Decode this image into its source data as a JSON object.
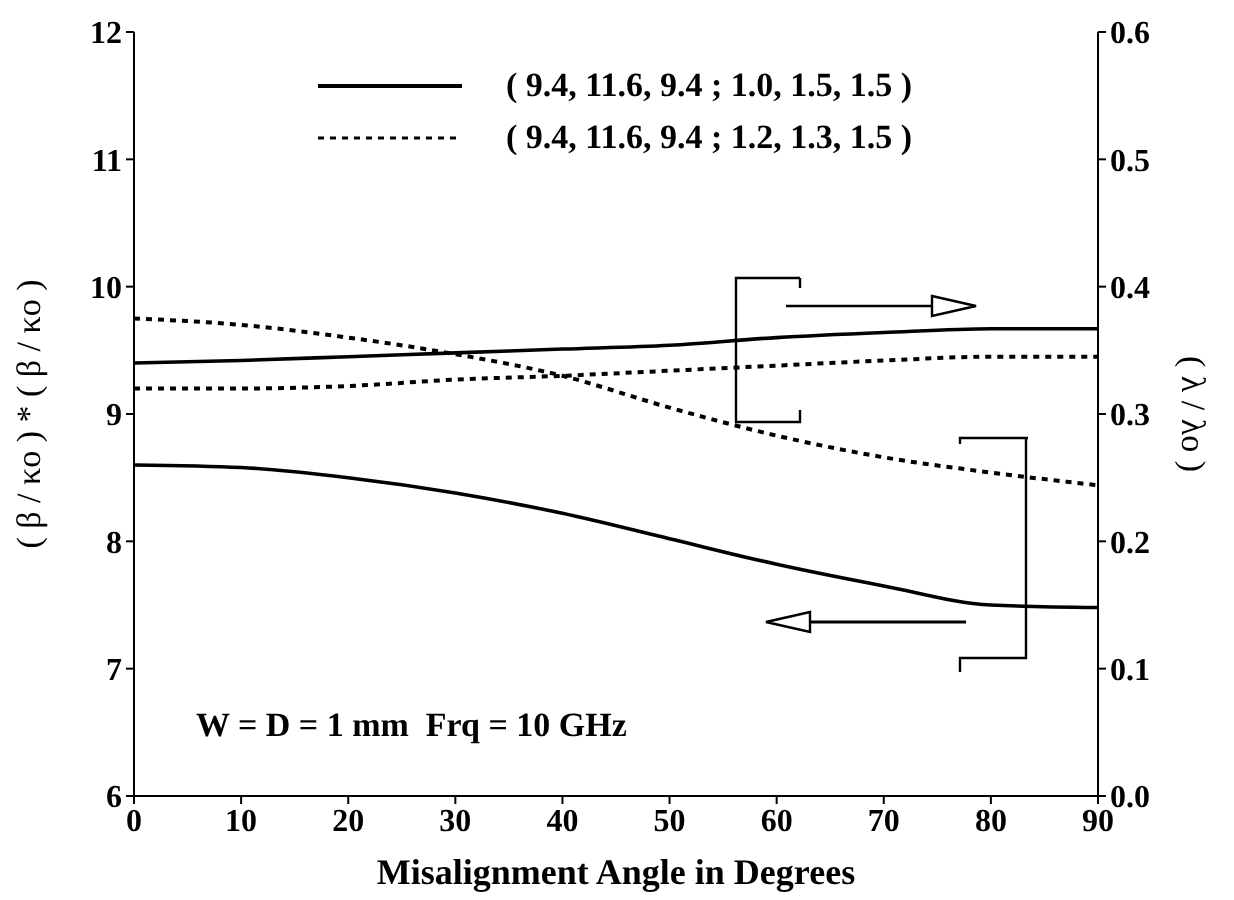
{
  "chart_data": {
    "type": "line",
    "xlabel": "Misalignment Angle in Degrees",
    "ylabel": "( β / κo ) * ( β / κo )",
    "y2label": "( λ / λo )",
    "x": [
      0,
      10,
      20,
      30,
      40,
      50,
      60,
      70,
      80,
      90
    ],
    "series": [
      {
        "name": "( 9.4, 11.6, 9.4 ; 1.0, 1.5, 1.5 )",
        "color": "#000000",
        "line_style": "solid",
        "values": [
          8.6,
          8.58,
          8.5,
          8.38,
          8.22,
          8.02,
          7.82,
          7.65,
          7.5,
          7.48
        ]
      },
      {
        "name": "( 9.4, 11.6, 9.4 ; 1.2, 1.3, 1.5 )",
        "color": "#000000",
        "line_style": "dotted",
        "values": [
          9.75,
          9.7,
          9.6,
          9.47,
          9.3,
          9.05,
          8.83,
          8.66,
          8.54,
          8.44
        ]
      },
      {
        "color": "#000000",
        "line_style": "solid",
        "axis": "y2",
        "values": [
          0.34,
          0.342,
          0.345,
          0.348,
          0.351,
          0.354,
          0.36,
          0.364,
          0.367,
          0.367
        ]
      },
      {
        "color": "#000000",
        "line_style": "dotted",
        "axis": "y2",
        "values": [
          0.32,
          0.32,
          0.322,
          0.327,
          0.33,
          0.334,
          0.338,
          0.342,
          0.345,
          0.345
        ]
      }
    ],
    "xlim": [
      0,
      90
    ],
    "xticks": [
      0,
      10,
      20,
      30,
      40,
      50,
      60,
      70,
      80,
      90
    ],
    "ylim": [
      6,
      12
    ],
    "yticks": [
      6,
      7,
      8,
      9,
      10,
      11,
      12
    ],
    "y2lim": [
      0,
      0.6
    ],
    "y2ticks": [
      {
        "value": 0,
        "label": "0.0"
      },
      0.1,
      0.2,
      0.3,
      0.4,
      0.5,
      0.6
    ],
    "legend": "top left",
    "grid": false,
    "marker": "none",
    "annotations": [
      "W = D = 1 mm  Frq = 10 GHz"
    ]
  }
}
